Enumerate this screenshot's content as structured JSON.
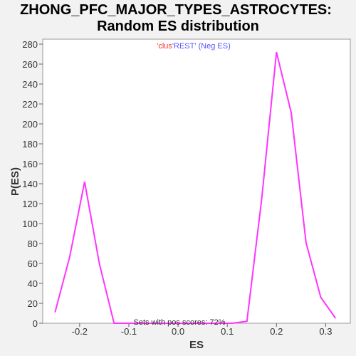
{
  "chart_data": {
    "type": "line",
    "title_line1": "ZHONG_PFC_MAJOR_TYPES_ASTROCYTES:",
    "title_line2": "Random ES distribution",
    "xlabel": "ES",
    "ylabel": "P(ES)",
    "xlim": [
      -0.275,
      0.35
    ],
    "ylim": [
      0,
      285
    ],
    "x_ticks": [
      -0.2,
      -0.1,
      0.0,
      0.1,
      0.2,
      0.3
    ],
    "y_ticks": [
      0,
      20,
      40,
      60,
      80,
      100,
      120,
      140,
      160,
      180,
      200,
      220,
      240,
      260,
      280
    ],
    "legend": {
      "part1": "'clus",
      "part2": "'REST'",
      "part3": " (Neg ES)",
      "color1": "#ff3333",
      "color2": "#5555ff"
    },
    "annotation": "Sets with pos scores: 72%",
    "series": [
      {
        "color": "#ff33ff",
        "x": [
          -0.25,
          -0.22,
          -0.19,
          -0.16,
          -0.13,
          -0.1,
          -0.07,
          -0.04,
          -0.01,
          0.02,
          0.05,
          0.08,
          0.11,
          0.14,
          0.17,
          0.2,
          0.23,
          0.26,
          0.29,
          0.32
        ],
        "y": [
          11,
          67,
          142,
          60,
          0,
          0,
          0,
          0,
          0,
          0,
          0,
          0,
          0,
          2,
          125,
          272,
          211,
          81,
          26,
          5
        ]
      }
    ]
  }
}
